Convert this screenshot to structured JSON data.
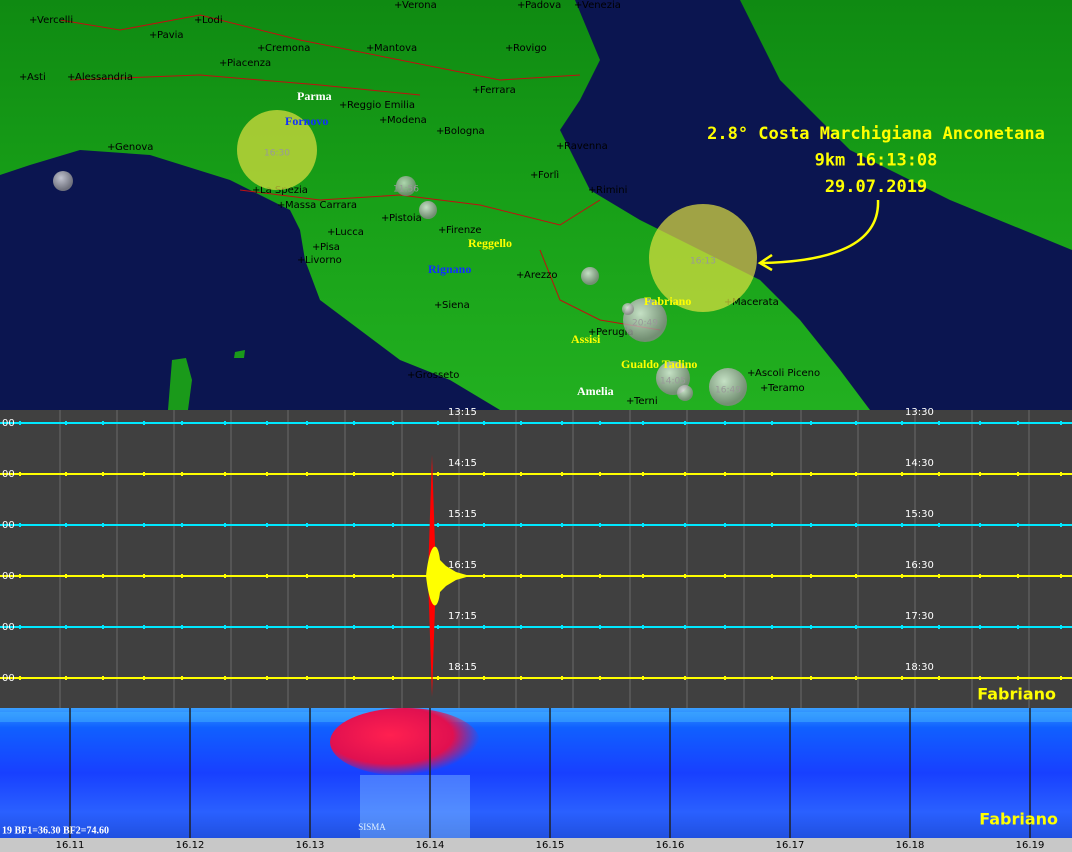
{
  "map": {
    "cities": [
      "Vercelli",
      "Lodi",
      "Pavia",
      "Cremona",
      "Mantova",
      "Verona",
      "Padova",
      "Venezia",
      "Rovigo",
      "Asti",
      "Alessandria",
      "Piacenza",
      "Reggio Emilia",
      "Modena",
      "Ferrara",
      "Bologna",
      "Ravenna",
      "Genova",
      "Forlì",
      "Rimini",
      "La Spezia",
      "Massa Carrara",
      "Pistoia",
      "Firenze",
      "Lucca",
      "Pisa",
      "Livorno",
      "Arezzo",
      "Siena",
      "Perugia",
      "Macerata",
      "Grosseto",
      "Ascoli Piceno",
      "Teramo",
      "Terni"
    ],
    "stations": [
      "Parma",
      "Fornovo",
      "Reggello",
      "Rignano",
      "Fabriano",
      "Assisi",
      "Gualdo Tadino",
      "Amelia"
    ],
    "bubbles": [
      "16:30",
      "11:56",
      "16:13",
      "20:49",
      "14:05",
      "16:49"
    ],
    "annotation": [
      "2.8° Costa Marchigiana Anconetana",
      "9km 16:13:08",
      "29.07.2019"
    ]
  },
  "seismogram": {
    "station": "Fabriano",
    "traces": [
      {
        "left": "00",
        "start": "13:15",
        "end": "13:30"
      },
      {
        "left": "00",
        "start": "14:15",
        "end": "14:30"
      },
      {
        "left": "00",
        "start": "15:15",
        "end": "15:30"
      },
      {
        "left": "00",
        "start": "16:15",
        "end": "16:30"
      },
      {
        "left": "00",
        "start": "17:15",
        "end": "17:30"
      },
      {
        "left": "00",
        "start": "18:15",
        "end": "18:30"
      }
    ]
  },
  "spectrogram": {
    "station": "Fabriano",
    "info": "19 BF1=36.30 BF2=74.60",
    "marker": "SISMA",
    "times": [
      "16.11",
      "16.12",
      "16.13",
      "16.14",
      "16.15",
      "16.16",
      "16.17",
      "16.18",
      "16.19"
    ]
  }
}
